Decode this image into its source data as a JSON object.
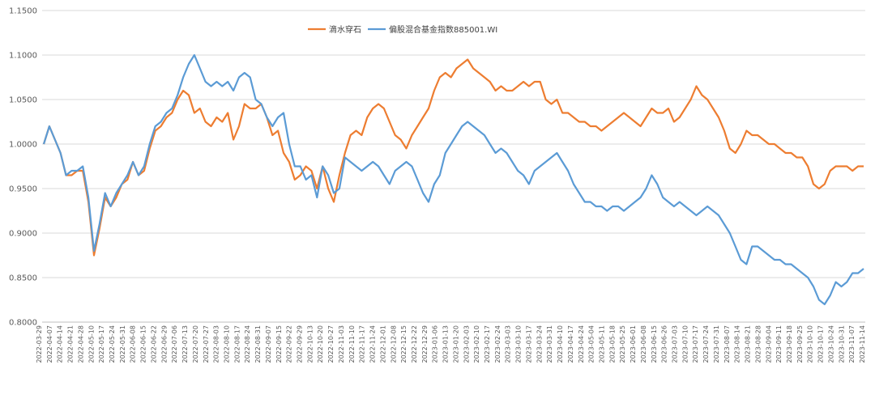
{
  "chart_data": {
    "type": "line",
    "title": "",
    "xlabel": "",
    "ylabel": "",
    "ylim": [
      0.8,
      1.15
    ],
    "yticks": [
      "0.8000",
      "0.8500",
      "0.9000",
      "0.9500",
      "1.0000",
      "1.0500",
      "1.1000",
      "1.1500"
    ],
    "grid": true,
    "legend_position": "top-center",
    "x_tick_labels": [
      "2022-03-29",
      "2022-04-07",
      "2022-04-14",
      "2022-04-21",
      "2022-04-28",
      "2022-05-10",
      "2022-05-17",
      "2022-05-24",
      "2022-05-31",
      "2022-06-08",
      "2022-06-15",
      "2022-06-22",
      "2022-06-29",
      "2022-07-06",
      "2022-07-13",
      "2022-07-20",
      "2022-07-27",
      "2022-08-03",
      "2022-08-10",
      "2022-08-17",
      "2022-08-24",
      "2022-08-31",
      "2022-09-07",
      "2022-09-15",
      "2022-09-22",
      "2022-09-29",
      "2022-10-13",
      "2022-10-20",
      "2022-10-27",
      "2022-11-03",
      "2022-11-10",
      "2022-11-17",
      "2022-11-24",
      "2022-12-01",
      "2022-12-08",
      "2022-12-15",
      "2022-12-22",
      "2022-12-29",
      "2023-01-06",
      "2023-01-13",
      "2023-01-20",
      "2023-02-03",
      "2023-02-10",
      "2023-02-17",
      "2023-02-24",
      "2023-03-03",
      "2023-03-10",
      "2023-03-17",
      "2023-03-24",
      "2023-03-31",
      "2023-04-10",
      "2023-04-17",
      "2023-04-24",
      "2023-05-04",
      "2023-05-11",
      "2023-05-18",
      "2023-05-25",
      "2023-06-01",
      "2023-06-08",
      "2023-06-15",
      "2023-06-26",
      "2023-07-03",
      "2023-07-10",
      "2023-07-17",
      "2023-07-24",
      "2023-07-31",
      "2023-08-07",
      "2023-08-14",
      "2023-08-21",
      "2023-08-28",
      "2023-09-04",
      "2023-09-11",
      "2023-09-18",
      "2023-09-25",
      "2023-10-10",
      "2023-10-17",
      "2023-10-24",
      "2023-10-31",
      "2023-11-07",
      "2023-11-14"
    ],
    "series": [
      {
        "name": "滴水穿石",
        "color": "#ED7D31",
        "values": [
          1.0,
          1.02,
          1.005,
          0.99,
          0.965,
          0.965,
          0.97,
          0.97,
          0.935,
          0.875,
          0.905,
          0.94,
          0.93,
          0.94,
          0.955,
          0.96,
          0.98,
          0.965,
          0.97,
          0.995,
          1.015,
          1.02,
          1.03,
          1.035,
          1.05,
          1.06,
          1.055,
          1.035,
          1.04,
          1.025,
          1.02,
          1.03,
          1.025,
          1.035,
          1.005,
          1.02,
          1.045,
          1.04,
          1.04,
          1.045,
          1.03,
          1.01,
          1.015,
          0.99,
          0.98,
          0.96,
          0.965,
          0.975,
          0.97,
          0.95,
          0.975,
          0.95,
          0.935,
          0.965,
          0.99,
          1.01,
          1.015,
          1.01,
          1.03,
          1.04,
          1.045,
          1.04,
          1.025,
          1.01,
          1.005,
          0.995,
          1.01,
          1.02,
          1.03,
          1.04,
          1.06,
          1.075,
          1.08,
          1.075,
          1.085,
          1.09,
          1.095,
          1.085,
          1.08,
          1.075,
          1.07,
          1.06,
          1.065,
          1.06,
          1.06,
          1.065,
          1.07,
          1.065,
          1.07,
          1.07,
          1.05,
          1.045,
          1.05,
          1.035,
          1.035,
          1.03,
          1.025,
          1.025,
          1.02,
          1.02,
          1.015,
          1.02,
          1.025,
          1.03,
          1.035,
          1.03,
          1.025,
          1.02,
          1.03,
          1.04,
          1.035,
          1.035,
          1.04,
          1.025,
          1.03,
          1.04,
          1.05,
          1.065,
          1.055,
          1.05,
          1.04,
          1.03,
          1.015,
          0.995,
          0.99,
          1.0,
          1.015,
          1.01,
          1.01,
          1.005,
          1.0,
          1.0,
          0.995,
          0.99,
          0.99,
          0.985,
          0.985,
          0.975,
          0.955,
          0.95,
          0.955,
          0.97,
          0.975,
          0.975,
          0.975,
          0.97,
          0.975,
          0.975
        ]
      },
      {
        "name": "偏股混合基金指数885001.WI",
        "color": "#5B9BD5",
        "values": [
          1.0,
          1.02,
          1.005,
          0.99,
          0.965,
          0.97,
          0.97,
          0.975,
          0.94,
          0.88,
          0.91,
          0.945,
          0.93,
          0.945,
          0.955,
          0.965,
          0.98,
          0.965,
          0.975,
          1.0,
          1.02,
          1.025,
          1.035,
          1.04,
          1.055,
          1.075,
          1.09,
          1.1,
          1.085,
          1.07,
          1.065,
          1.07,
          1.065,
          1.07,
          1.06,
          1.075,
          1.08,
          1.075,
          1.05,
          1.045,
          1.03,
          1.02,
          1.03,
          1.035,
          1.0,
          0.975,
          0.975,
          0.96,
          0.965,
          0.94,
          0.975,
          0.965,
          0.945,
          0.95,
          0.985,
          0.98,
          0.975,
          0.97,
          0.975,
          0.98,
          0.975,
          0.965,
          0.955,
          0.97,
          0.975,
          0.98,
          0.975,
          0.96,
          0.945,
          0.935,
          0.955,
          0.965,
          0.99,
          1.0,
          1.01,
          1.02,
          1.025,
          1.02,
          1.015,
          1.01,
          1.0,
          0.99,
          0.995,
          0.99,
          0.98,
          0.97,
          0.965,
          0.955,
          0.97,
          0.975,
          0.98,
          0.985,
          0.99,
          0.98,
          0.97,
          0.955,
          0.945,
          0.935,
          0.935,
          0.93,
          0.93,
          0.925,
          0.93,
          0.93,
          0.925,
          0.93,
          0.935,
          0.94,
          0.95,
          0.965,
          0.955,
          0.94,
          0.935,
          0.93,
          0.935,
          0.93,
          0.925,
          0.92,
          0.925,
          0.93,
          0.925,
          0.92,
          0.91,
          0.9,
          0.885,
          0.87,
          0.865,
          0.885,
          0.885,
          0.88,
          0.875,
          0.87,
          0.87,
          0.865,
          0.865,
          0.86,
          0.855,
          0.85,
          0.84,
          0.825,
          0.82,
          0.83,
          0.845,
          0.84,
          0.845,
          0.855,
          0.855,
          0.86
        ]
      }
    ]
  }
}
